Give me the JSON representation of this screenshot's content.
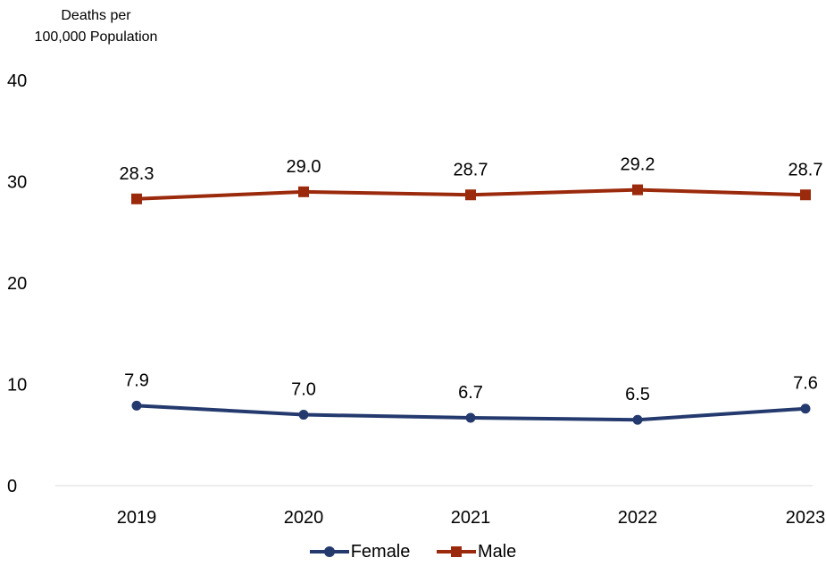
{
  "chart_data": {
    "type": "line",
    "ylabel": "Deaths per\n100,000 Population",
    "ylabel_lines": [
      "Deaths per",
      "100,000 Population"
    ],
    "xlabel": "",
    "ylim": [
      0,
      40
    ],
    "yticks": [
      0,
      10,
      20,
      30,
      40
    ],
    "categories": [
      "2019",
      "2020",
      "2021",
      "2022",
      "2023"
    ],
    "grid": false,
    "legend_position": "bottom",
    "series": [
      {
        "name": "Female",
        "values": [
          7.9,
          7.0,
          6.7,
          6.5,
          7.6
        ],
        "labels": [
          "7.9",
          "7.0",
          "6.7",
          "6.5",
          "7.6"
        ],
        "color": "#243a6e",
        "marker": "circle"
      },
      {
        "name": "Male",
        "values": [
          28.3,
          29.0,
          28.7,
          29.2,
          28.7
        ],
        "labels": [
          "28.3",
          "29.0",
          "28.7",
          "29.2",
          "28.7"
        ],
        "color": "#9b2a0c",
        "marker": "square"
      }
    ]
  }
}
